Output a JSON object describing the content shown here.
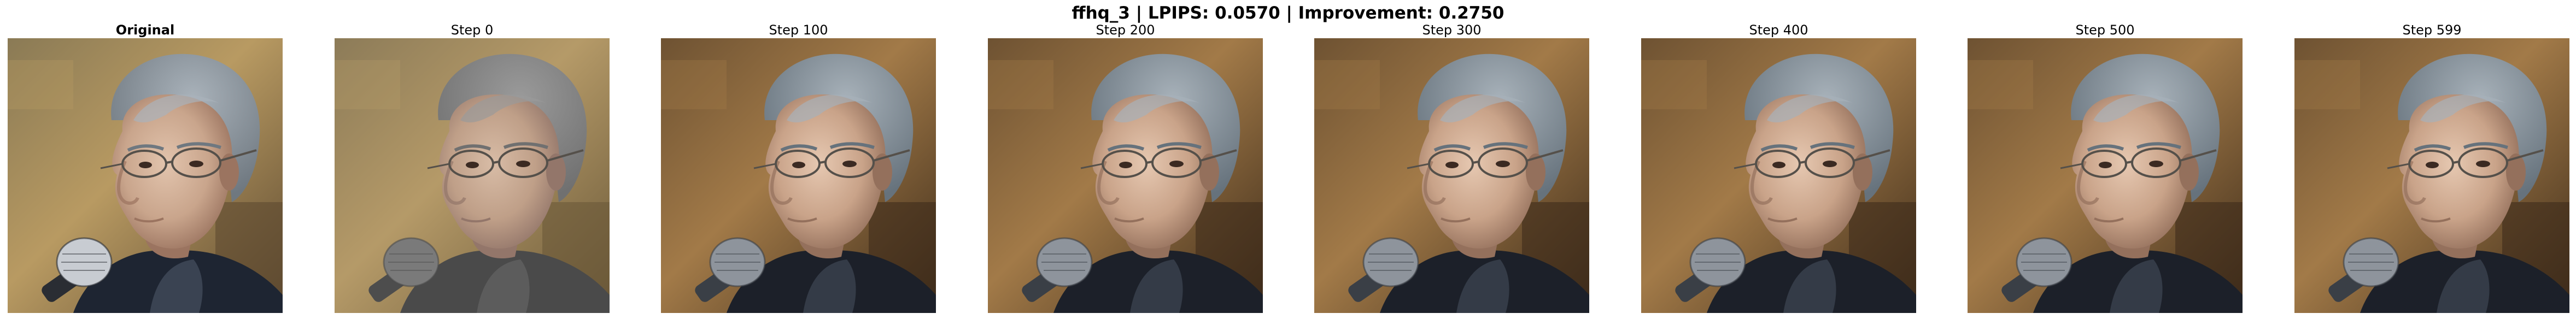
{
  "figure": {
    "title": "ffhq_3 | LPIPS: 0.0570 | Improvement: 0.2750"
  },
  "panels": [
    {
      "label": "Original",
      "image": "face-photo-original",
      "style": "original"
    },
    {
      "label": "Step 0",
      "image": "face-photo-step-0",
      "style": "step0"
    },
    {
      "label": "Step 100",
      "image": "face-photo-step-100",
      "style": "step"
    },
    {
      "label": "Step 200",
      "image": "face-photo-step-200",
      "style": "step"
    },
    {
      "label": "Step 300",
      "image": "face-photo-step-300",
      "style": "step"
    },
    {
      "label": "Step 400",
      "image": "face-photo-step-400",
      "style": "step"
    },
    {
      "label": "Step 500",
      "image": "face-photo-step-500",
      "style": "step"
    },
    {
      "label": "Step 599",
      "image": "face-photo-step-599",
      "style": "step"
    }
  ]
}
